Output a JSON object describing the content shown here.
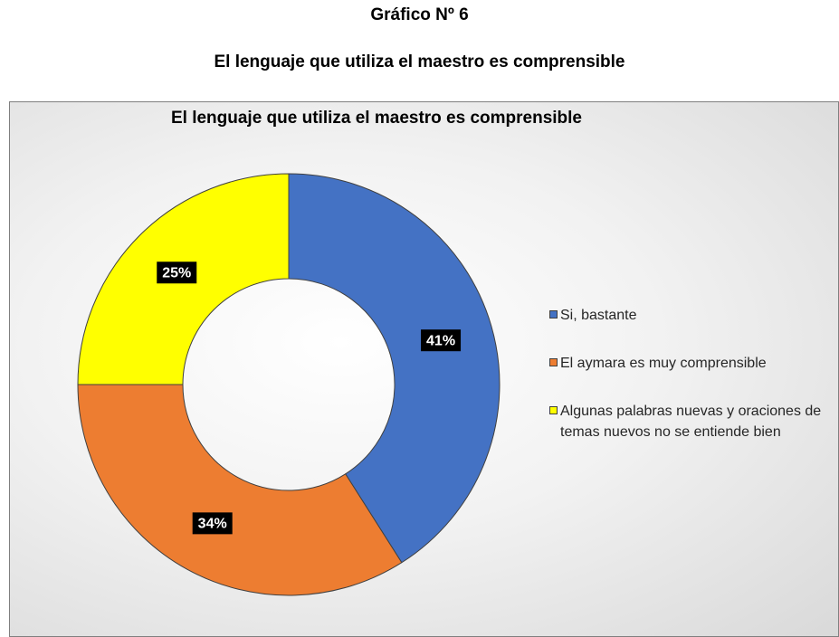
{
  "heading": {
    "figure": "Gráfico Nº 6",
    "title": "El lenguaje que utiliza el maestro es comprensible"
  },
  "chart_data": {
    "type": "donut",
    "title": "El lenguaje que utiliza el maestro es comprensible",
    "categories": [
      "Si, bastante",
      "El aymara es muy comprensible",
      "Algunas palabras nuevas y oraciones de temas nuevos no se entiende bien"
    ],
    "values": [
      41,
      34,
      25
    ],
    "value_labels": [
      "41%",
      "34%",
      "25%"
    ],
    "colors": [
      "#4472c4",
      "#ed7d31",
      "#ffff00"
    ],
    "legend": "right"
  }
}
